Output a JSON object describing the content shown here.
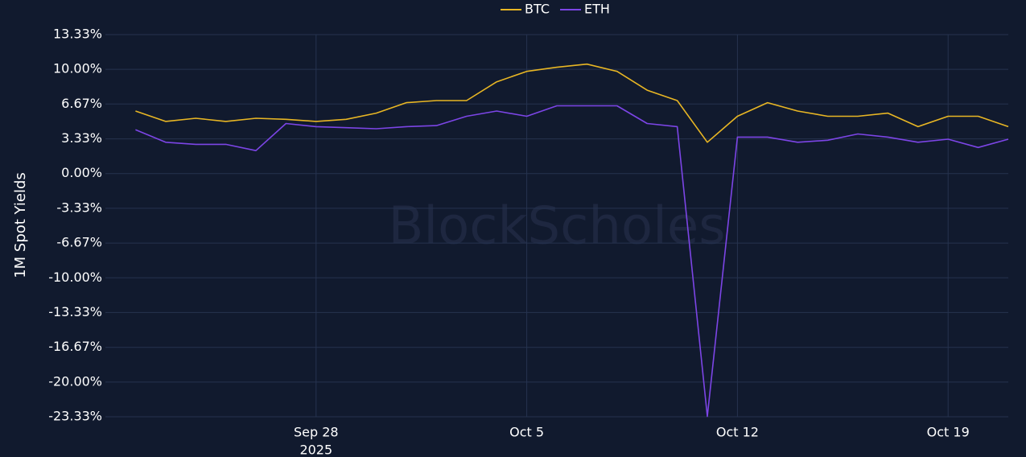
{
  "chart_data": {
    "type": "line",
    "y_label": "1M Spot Yields",
    "watermark": "BlockScholes",
    "x": [
      "2025-09-22",
      "2025-09-23",
      "2025-09-24",
      "2025-09-25",
      "2025-09-26",
      "2025-09-27",
      "2025-09-28",
      "2025-09-29",
      "2025-09-30",
      "2025-10-01",
      "2025-10-02",
      "2025-10-03",
      "2025-10-04",
      "2025-10-05",
      "2025-10-06",
      "2025-10-07",
      "2025-10-08",
      "2025-10-09",
      "2025-10-10",
      "2025-10-11",
      "2025-10-12",
      "2025-10-13",
      "2025-10-14",
      "2025-10-15",
      "2025-10-16",
      "2025-10-17",
      "2025-10-18",
      "2025-10-19",
      "2025-10-20",
      "2025-10-21"
    ],
    "series": [
      {
        "name": "BTC",
        "color": "#e8b624",
        "values": [
          6.0,
          5.0,
          5.3,
          5.0,
          5.3,
          5.2,
          5.0,
          5.2,
          5.8,
          6.8,
          7.0,
          7.0,
          8.8,
          9.8,
          10.2,
          10.5,
          9.8,
          8.0,
          7.0,
          3.0,
          5.5,
          6.8,
          6.0,
          5.5,
          5.5,
          5.8,
          4.5,
          5.5,
          5.5,
          4.5
        ]
      },
      {
        "name": "ETH",
        "color": "#7c45e6",
        "values": [
          4.2,
          3.0,
          2.8,
          2.8,
          2.2,
          4.8,
          4.5,
          4.4,
          4.3,
          4.5,
          4.6,
          5.5,
          6.0,
          5.5,
          6.5,
          6.5,
          6.5,
          4.8,
          4.5,
          -23.3,
          3.5,
          3.5,
          3.0,
          3.2,
          3.8,
          3.5,
          3.0,
          3.3,
          2.5,
          3.3
        ]
      }
    ],
    "xlim": [
      "2025-09-21",
      "2025-10-21"
    ],
    "xticks": [
      {
        "value": "2025-09-28",
        "label": "Sep 28"
      },
      {
        "value": "2025-10-05",
        "label": "Oct 5"
      },
      {
        "value": "2025-10-12",
        "label": "Oct 12"
      },
      {
        "value": "2025-10-19",
        "label": "Oct 19"
      }
    ],
    "xtick_year": "2025",
    "ylim": [
      -23.33,
      13.33
    ],
    "yticks": [
      {
        "value": 13.33,
        "label": "13.33%"
      },
      {
        "value": 10.0,
        "label": "10.00%"
      },
      {
        "value": 6.67,
        "label": "6.67%"
      },
      {
        "value": 3.33,
        "label": "3.33%"
      },
      {
        "value": 0,
        "label": "0.00%"
      },
      {
        "value": -3.33,
        "label": "-3.33%"
      },
      {
        "value": -6.67,
        "label": "-6.67%"
      },
      {
        "value": -10.0,
        "label": "-10.00%"
      },
      {
        "value": -13.33,
        "label": "-13.33%"
      },
      {
        "value": -16.67,
        "label": "-16.67%"
      },
      {
        "value": -20.0,
        "label": "-20.00%"
      },
      {
        "value": -23.33,
        "label": "-23.33%"
      }
    ],
    "grid": true,
    "legend": "top"
  }
}
